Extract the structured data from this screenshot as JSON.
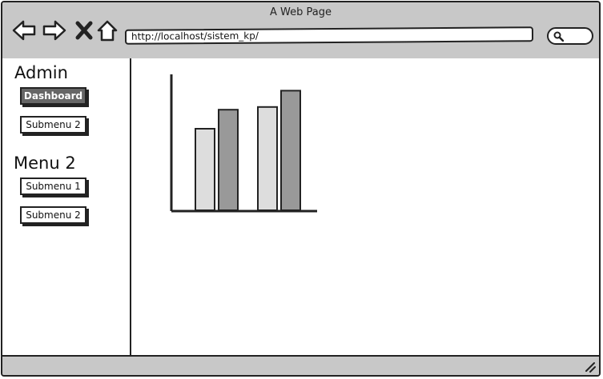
{
  "window": {
    "title": "A Web Page"
  },
  "toolbar": {
    "address": "http://localhost/sistem_kp/",
    "icons": [
      "back-icon",
      "forward-icon",
      "close-icon",
      "home-icon",
      "search-icon"
    ]
  },
  "sidebar": {
    "sections": [
      {
        "title": "Admin",
        "items": [
          {
            "label": "Dashboard",
            "active": true
          },
          {
            "label": "Submenu 2",
            "active": false
          }
        ]
      },
      {
        "title": "Menu 2",
        "items": [
          {
            "label": "Submenu 1",
            "active": false
          },
          {
            "label": "Submenu 2",
            "active": false
          }
        ]
      }
    ]
  },
  "colors": {
    "chrome": "#c8c8c8",
    "active_button": "#666666",
    "bar_light": "#dddddd",
    "bar_dark": "#999999",
    "outline": "#222222"
  },
  "chart_data": {
    "type": "bar",
    "categories": [
      "",
      ""
    ],
    "series": [
      {
        "values": [
          60,
          76
        ]
      },
      {
        "values": [
          74,
          88
        ]
      }
    ],
    "ylim": [
      0,
      100
    ],
    "grid": false
  }
}
